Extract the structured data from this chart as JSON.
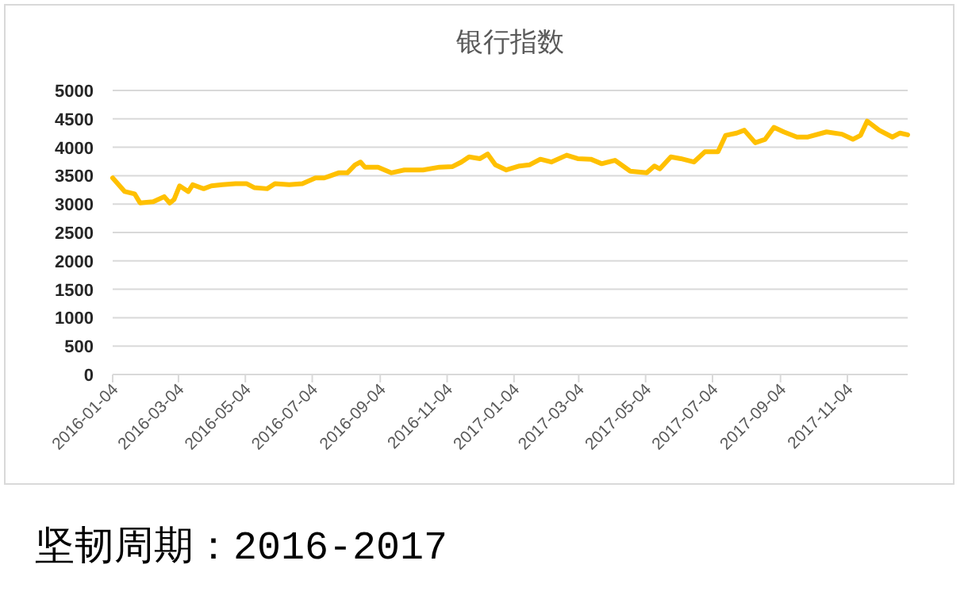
{
  "chart_data": {
    "type": "line",
    "title": "银行指数",
    "annotations": [
      "坚韧周期：2016-2017"
    ],
    "x": [
      "2016-01-04",
      "2016-01-15",
      "2016-01-24",
      "2016-01-29",
      "2016-02-10",
      "2016-02-20",
      "2016-02-25",
      "2016-02-29",
      "2016-03-05",
      "2016-03-13",
      "2016-03-17",
      "2016-03-27",
      "2016-04-03",
      "2016-04-13",
      "2016-04-25",
      "2016-05-05",
      "2016-05-12",
      "2016-05-24",
      "2016-05-31",
      "2016-06-13",
      "2016-06-25",
      "2016-07-07",
      "2016-07-15",
      "2016-07-21",
      "2016-07-28",
      "2016-08-05",
      "2016-08-12",
      "2016-08-17",
      "2016-08-21",
      "2016-09-02",
      "2016-09-14",
      "2016-09-26",
      "2016-10-13",
      "2016-10-28",
      "2016-11-09",
      "2016-11-17",
      "2016-11-24",
      "2016-12-04",
      "2016-12-11",
      "2016-12-18",
      "2016-12-28",
      "2017-01-09",
      "2017-01-18",
      "2017-01-28",
      "2017-02-07",
      "2017-02-21",
      "2017-03-03",
      "2017-03-15",
      "2017-03-25",
      "2017-04-06",
      "2017-04-20",
      "2017-05-05",
      "2017-05-12",
      "2017-05-17",
      "2017-05-27",
      "2017-06-05",
      "2017-06-17",
      "2017-06-27",
      "2017-07-09",
      "2017-07-16",
      "2017-07-26",
      "2017-08-02",
      "2017-08-12",
      "2017-08-21",
      "2017-08-29",
      "2017-09-07",
      "2017-09-19",
      "2017-09-29",
      "2017-10-16",
      "2017-10-30",
      "2017-11-09",
      "2017-11-16",
      "2017-11-22",
      "2017-12-03",
      "2017-12-15",
      "2017-12-22",
      "2017-12-29"
    ],
    "series": [
      {
        "color": "#ffc000",
        "values": [
          3460,
          3220,
          3180,
          3020,
          3040,
          3130,
          3020,
          3080,
          3320,
          3220,
          3340,
          3270,
          3320,
          3340,
          3360,
          3360,
          3290,
          3270,
          3360,
          3340,
          3360,
          3460,
          3460,
          3500,
          3550,
          3550,
          3690,
          3740,
          3650,
          3650,
          3550,
          3600,
          3600,
          3650,
          3660,
          3740,
          3830,
          3800,
          3880,
          3690,
          3600,
          3670,
          3690,
          3790,
          3740,
          3860,
          3800,
          3790,
          3710,
          3770,
          3580,
          3550,
          3670,
          3620,
          3830,
          3800,
          3740,
          3920,
          3920,
          4210,
          4250,
          4300,
          4080,
          4140,
          4350,
          4270,
          4180,
          4180,
          4270,
          4230,
          4140,
          4210,
          4460,
          4300,
          4180,
          4250,
          4220
        ]
      }
    ],
    "xlim": [
      "2016-01-04",
      "2017-12-29"
    ],
    "xticks": [
      "2016-01-04",
      "2016-03-04",
      "2016-05-04",
      "2016-07-04",
      "2016-09-04",
      "2016-11-04",
      "2017-01-04",
      "2017-03-04",
      "2017-05-04",
      "2017-07-04",
      "2017-09-04",
      "2017-11-04"
    ],
    "ylim": [
      0,
      5000
    ],
    "yticks": [
      0,
      500,
      1000,
      1500,
      2000,
      2500,
      3000,
      3500,
      4000,
      4500,
      5000
    ],
    "grid": "y",
    "marker": "none",
    "line_style": "solid"
  }
}
